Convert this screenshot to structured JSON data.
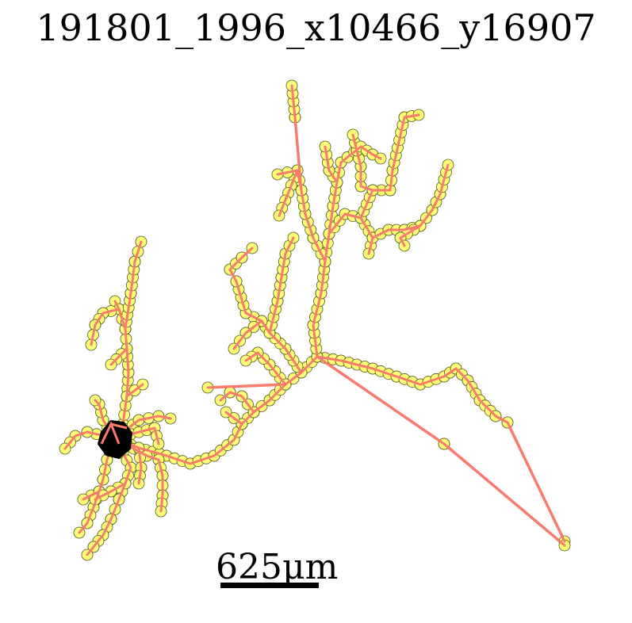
{
  "title": "191801_1996_x10466_y16907",
  "scale_bar": {
    "label": "625μm"
  },
  "colors": {
    "edge": "#fa7a6e",
    "node_fill": "#ffff77",
    "node_stroke": "#555522",
    "soma": "#000000",
    "background": "#ffffff"
  }
}
